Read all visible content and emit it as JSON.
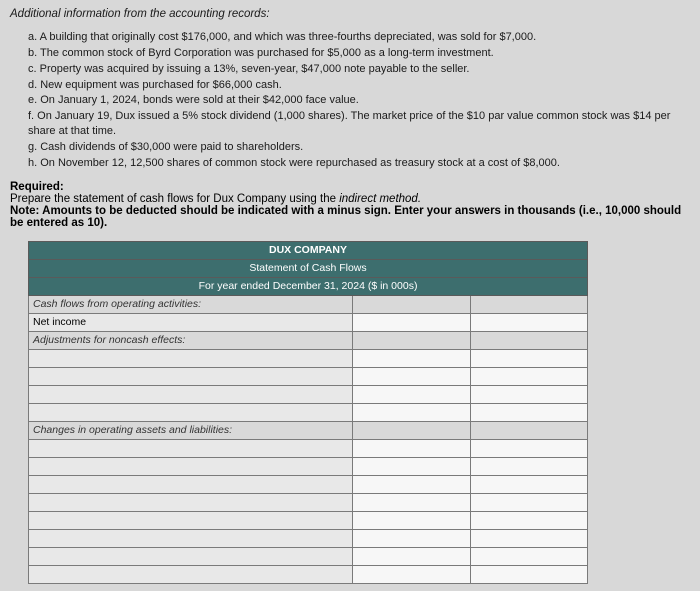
{
  "intro": "Additional information from the accounting records:",
  "items": {
    "a": "a. A building that originally cost $176,000, and which was three-fourths depreciated, was sold for $7,000.",
    "b": "b. The common stock of Byrd Corporation was purchased for $5,000 as a long-term investment.",
    "c": "c. Property was acquired by issuing a 13%, seven-year, $47,000 note payable to the seller.",
    "d": "d. New equipment was purchased for $66,000 cash.",
    "e": "e. On January 1, 2024, bonds were sold at their $42,000 face value.",
    "f": "f. On January 19, Dux issued a 5% stock dividend (1,000 shares). The market price of the $10 par value common stock was $14 per share at that time.",
    "g": "g. Cash dividends of $30,000 were paid to shareholders.",
    "h": "h. On November 12, 12,500 shares of common stock were repurchased as treasury stock at a cost of $8,000."
  },
  "required": {
    "label": "Required:",
    "text": "Prepare the statement of cash flows for Dux Company using the ",
    "italic": "indirect method.",
    "note": "Note: Amounts to be deducted should be indicated with a minus sign. Enter your answers in thousands (i.e., 10,000 should be entered as 10)."
  },
  "table": {
    "title": "DUX COMPANY",
    "subtitle": "Statement of Cash Flows",
    "period": "For year ended December 31, 2024 ($ in 000s)",
    "rows": {
      "operating": "Cash flows from operating activities:",
      "netincome": "Net income",
      "adjustments": "Adjustments for noncash effects:",
      "changes": "Changes in operating assets and liabilities:"
    }
  }
}
